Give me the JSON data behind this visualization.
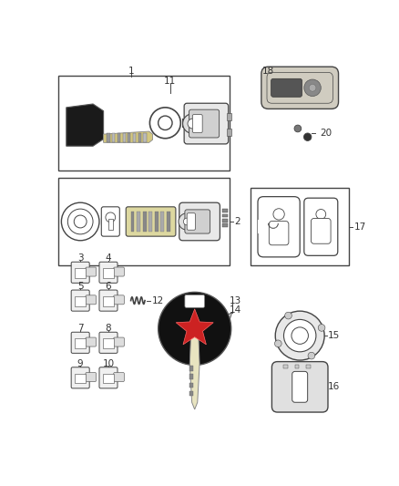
{
  "bg_color": "#ffffff",
  "lc": "#444444",
  "fig_w": 4.38,
  "fig_h": 5.33,
  "dpi": 100
}
